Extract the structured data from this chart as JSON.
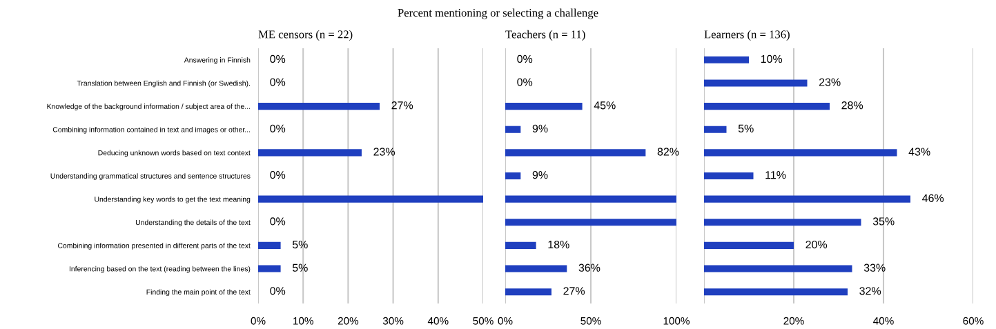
{
  "chart_data": [
    {
      "type": "bar",
      "orientation": "horizontal",
      "title": "Percent mentioning or selecting a challenge",
      "subtitle": "ME censors (n = 22)",
      "categories": [
        "Answering in Finnish",
        "Translation between English and Finnish (or Swedish).",
        "Knowledge of the background information / subject area of the...",
        "Combining information contained in text and images or other...",
        "Deducing unknown words based on text context",
        "Understanding grammatical structures and sentence structures",
        "Understanding key words to get the text meaning",
        "Understanding the details of the text",
        "Combining information presented in different parts of the text",
        "Inferencing based on the text (reading between the lines)",
        "Finding the main point of the text"
      ],
      "values": [
        0,
        0,
        27,
        0,
        23,
        0,
        50,
        0,
        5,
        5,
        0
      ],
      "value_labels": [
        "0%",
        "0%",
        "27%",
        "0%",
        "23%",
        "0%",
        null,
        "0%",
        "5%",
        "5%",
        "0%"
      ],
      "color": "#1f3fbf",
      "xlim": [
        0,
        50
      ],
      "xticks": [
        {
          "value": 0,
          "label": "0%"
        },
        {
          "value": 10,
          "label": "10%"
        },
        {
          "value": 20,
          "label": "20%"
        },
        {
          "value": 30,
          "label": "30%"
        },
        {
          "value": 40,
          "label": "40%"
        },
        {
          "value": 50,
          "label": "50%"
        }
      ],
      "grid": "x"
    },
    {
      "type": "bar",
      "orientation": "horizontal",
      "subtitle": "Teachers (n = 11)",
      "categories": [
        null,
        null,
        null,
        null,
        null,
        null,
        null,
        null,
        null,
        null,
        null
      ],
      "values": [
        0,
        0,
        45,
        9,
        82,
        9,
        100,
        100,
        18,
        36,
        27
      ],
      "value_labels": [
        "0%",
        "0%",
        "45%",
        "9%",
        "82%",
        "9%",
        null,
        null,
        "18%",
        "36%",
        "27%"
      ],
      "color": "#1f3fbf",
      "xlim": [
        0,
        100
      ],
      "xticks": [
        {
          "value": 0,
          "label": "0%"
        },
        {
          "value": 50,
          "label": "50%"
        },
        {
          "value": 100,
          "label": "100%"
        }
      ],
      "grid": "x",
      "tick_labels": "x"
    },
    {
      "type": "bar",
      "orientation": "horizontal",
      "subtitle": "Learners (n = 136)",
      "categories": [
        null,
        null,
        null,
        null,
        null,
        null,
        null,
        null,
        null,
        null,
        null
      ],
      "values": [
        10,
        23,
        28,
        5,
        43,
        11,
        46,
        35,
        20,
        33,
        32
      ],
      "value_labels": [
        "10%",
        "23%",
        "28%",
        "5%",
        "43%",
        "11%",
        "46%",
        "35%",
        "20%",
        "33%",
        "32%"
      ],
      "color": "#1f3fbf",
      "xlim": [
        0,
        60
      ],
      "xticks": [
        {
          "value": 0,
          "label": null
        },
        {
          "value": 20,
          "label": "20%"
        },
        {
          "value": 40,
          "label": "40%"
        },
        {
          "value": 60,
          "label": "60%"
        }
      ],
      "grid": "x",
      "tick_labels": "x"
    }
  ]
}
